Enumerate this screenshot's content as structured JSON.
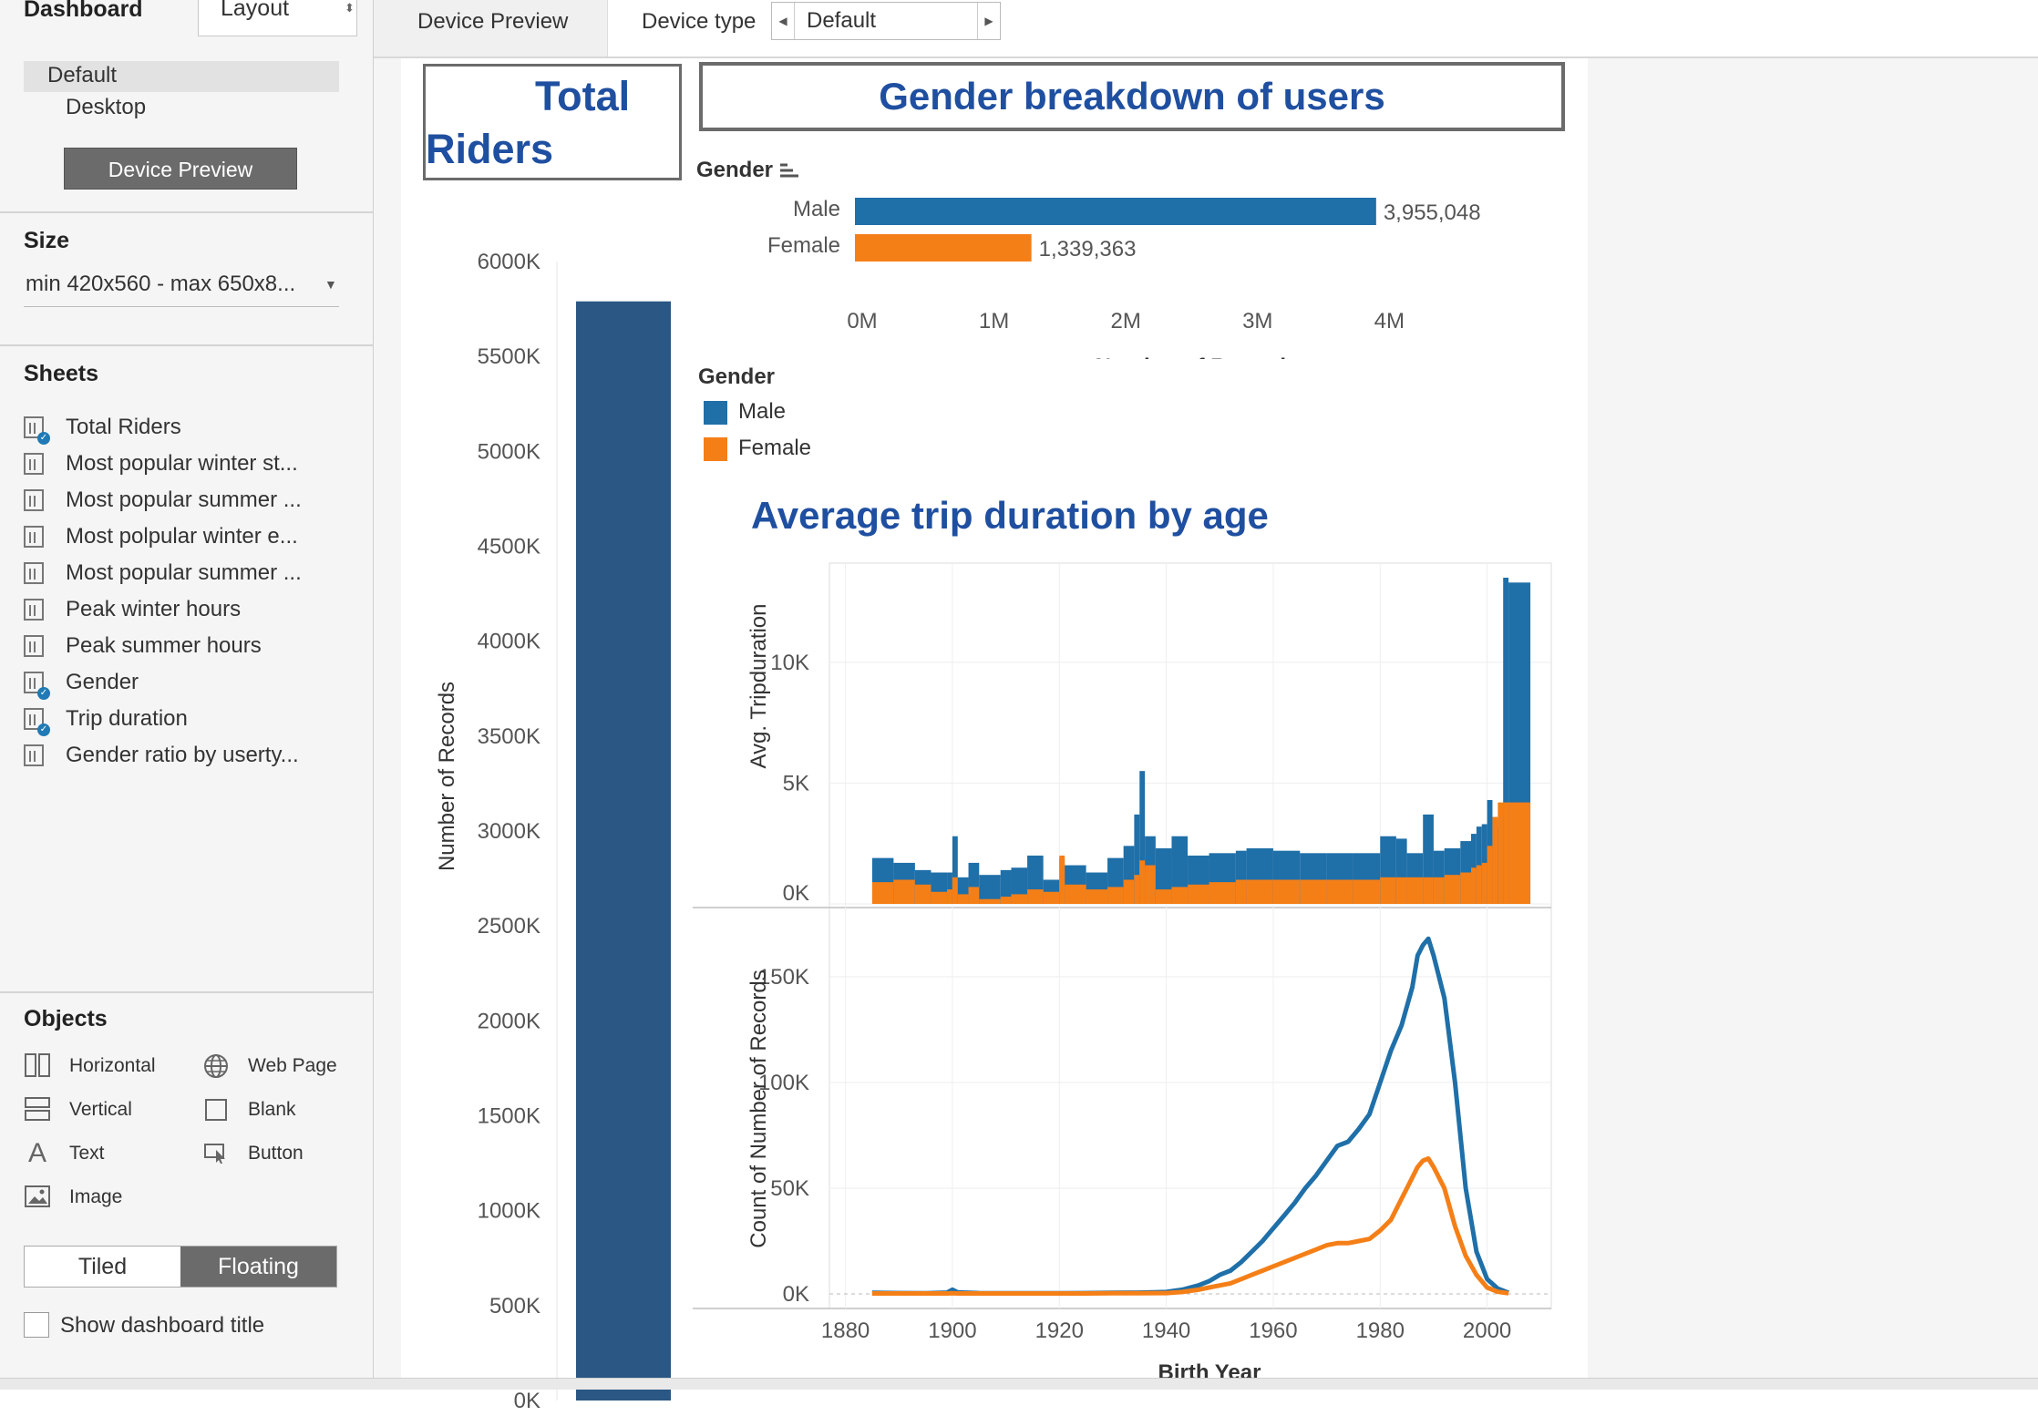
{
  "left_panel": {
    "tabs": {
      "dashboard": "Dashboard",
      "layout": "Layout"
    },
    "device": {
      "default": "Default",
      "desktop": "Desktop",
      "preview_button": "Device Preview"
    },
    "size": {
      "header": "Size",
      "value": "min 420x560 - max 650x8..."
    },
    "sheets": {
      "header": "Sheets",
      "items": [
        {
          "label": "Total Riders",
          "used": true
        },
        {
          "label": "Most popular winter st...",
          "used": false
        },
        {
          "label": "Most popular summer ...",
          "used": false
        },
        {
          "label": "Most polpular winter e...",
          "used": false
        },
        {
          "label": "Most popular summer ...",
          "used": false
        },
        {
          "label": "Peak winter hours",
          "used": false
        },
        {
          "label": "Peak summer hours",
          "used": false
        },
        {
          "label": "Gender",
          "used": true
        },
        {
          "label": "Trip duration",
          "used": true
        },
        {
          "label": "Gender ratio by userty...",
          "used": false
        }
      ]
    },
    "objects": {
      "header": "Objects",
      "items": [
        {
          "label": "Horizontal",
          "icon": "horizontal-container-icon"
        },
        {
          "label": "Web Page",
          "icon": "globe-icon"
        },
        {
          "label": "Vertical",
          "icon": "vertical-container-icon"
        },
        {
          "label": "Blank",
          "icon": "blank-square-icon"
        },
        {
          "label": "Text",
          "icon": "text-icon"
        },
        {
          "label": "Button",
          "icon": "button-cursor-icon"
        },
        {
          "label": "Image",
          "icon": "image-icon"
        }
      ],
      "tiled": "Tiled",
      "floating": "Floating",
      "show_title": "Show dashboard title"
    }
  },
  "topbar": {
    "device_preview": "Device Preview",
    "device_type_label": "Device type",
    "device_type_value": "Default"
  },
  "dashboard": {
    "total_riders_title": "Total Riders",
    "gender_title": "Gender breakdown of users",
    "trip_title": "Average trip duration by age",
    "legend": {
      "title": "Gender",
      "items": [
        {
          "label": "Male",
          "color": "#1f6fa8"
        },
        {
          "label": "Female",
          "color": "#f57f17"
        }
      ]
    }
  },
  "colors": {
    "male": "#1f6fa8",
    "female": "#f57f17",
    "total_bar": "#2a5783",
    "title_blue": "#1f4fa0"
  },
  "chart_data": [
    {
      "id": "total-riders",
      "type": "bar",
      "categories": [
        ""
      ],
      "values": [
        5790000
      ],
      "ylabel": "Number of Records",
      "ylim": [
        0,
        6000000
      ],
      "yticks": [
        "0K",
        "500K",
        "1000K",
        "1500K",
        "2000K",
        "2500K",
        "3000K",
        "3500K",
        "4000K",
        "4500K",
        "5000K",
        "5500K",
        "6000K"
      ]
    },
    {
      "id": "gender-breakdown",
      "type": "bar",
      "orientation": "horizontal",
      "header": "Gender",
      "categories": [
        "Male",
        "Female"
      ],
      "values": [
        3955048,
        1339363
      ],
      "value_labels": [
        "3,955,048",
        "1,339,363"
      ],
      "xlabel": "Number of Records",
      "xlim": [
        0,
        4800000
      ],
      "xticks": [
        "0M",
        "1M",
        "2M",
        "3M",
        "4M"
      ]
    },
    {
      "id": "avg-trip-duration",
      "type": "area",
      "ylabel": "Avg. Tripduration",
      "ylim": [
        0,
        13500
      ],
      "yticks": [
        "0K",
        "5K",
        "10K"
      ],
      "x": [
        1885,
        1889,
        1893,
        1896,
        1899,
        1900,
        1901,
        1903,
        1905,
        1909,
        1911,
        1914,
        1917,
        1920,
        1921,
        1925,
        1929,
        1932,
        1934,
        1935,
        1936,
        1938,
        1941,
        1944,
        1948,
        1953,
        1955,
        1960,
        1965,
        1970,
        1975,
        1980,
        1983,
        1985,
        1988,
        1990,
        1992,
        1995,
        1997,
        1998,
        1999,
        2000,
        2001,
        2002,
        2003,
        2004
      ],
      "series": [
        {
          "name": "Male",
          "values": [
            1600,
            1200,
            1100,
            800,
            900,
            1700,
            900,
            1300,
            700,
            900,
            1000,
            1400,
            500,
            1500,
            700,
            800,
            1200,
            2300,
            2500,
            3700,
            1200,
            1800,
            2500,
            1600,
            1700,
            1900,
            2000,
            1900,
            1800,
            1800,
            1800,
            2300,
            2200,
            1800,
            3000,
            1700,
            1800,
            1500,
            2100,
            2400,
            2500,
            3300,
            2600,
            2900,
            9600,
            9200
          ],
          "totals": [
            1900,
            1700,
            1400,
            1300,
            1300,
            2800,
            1100,
            1700,
            1200,
            1400,
            1500,
            2000,
            1000,
            1900,
            1600,
            1300,
            1900,
            2400,
            3700,
            5500,
            2800,
            2300,
            2800,
            2000,
            2100,
            2200,
            2300,
            2200,
            2100,
            2100,
            2100,
            2800,
            2700,
            2100,
            3700,
            2200,
            2300,
            2600,
            2900,
            3200,
            3300,
            4300,
            3200,
            3500,
            13500,
            13300
          ]
        },
        {
          "name": "Female",
          "values": [
            900,
            1000,
            800,
            500,
            600,
            1100,
            400,
            700,
            200,
            300,
            400,
            600,
            500,
            2000,
            800,
            600,
            700,
            1000,
            1200,
            1800,
            1600,
            600,
            700,
            800,
            900,
            1000,
            1000,
            1000,
            1000,
            1000,
            1000,
            1100,
            1100,
            1100,
            1100,
            1100,
            1200,
            1300,
            1500,
            1600,
            1700,
            2400,
            3600,
            4200,
            4200,
            4200
          ]
        }
      ]
    },
    {
      "id": "count-by-birth-year",
      "type": "line",
      "xlabel": "Birth Year",
      "ylabel": "Count of Number of Records",
      "xlim": [
        1877,
        2012
      ],
      "ylim": [
        0,
        175000
      ],
      "xticks": [
        1880,
        1900,
        1920,
        1940,
        1960,
        1980,
        2000
      ],
      "yticks": [
        "0K",
        "50K",
        "100K",
        "150K"
      ],
      "x": [
        1885,
        1890,
        1895,
        1899,
        1900,
        1901,
        1905,
        1910,
        1915,
        1920,
        1925,
        1930,
        1935,
        1940,
        1943,
        1946,
        1948,
        1950,
        1952,
        1954,
        1956,
        1958,
        1960,
        1962,
        1964,
        1966,
        1968,
        1970,
        1972,
        1974,
        1976,
        1978,
        1980,
        1982,
        1984,
        1986,
        1987,
        1988,
        1989,
        1990,
        1992,
        1994,
        1996,
        1998,
        2000,
        2002,
        2004
      ],
      "series": [
        {
          "name": "Male",
          "values": [
            500,
            400,
            300,
            600,
            2000,
            700,
            400,
            300,
            300,
            300,
            400,
            500,
            600,
            900,
            2000,
            4000,
            6000,
            9000,
            11000,
            15000,
            20000,
            25000,
            31000,
            37000,
            43000,
            50000,
            56000,
            63000,
            70000,
            72000,
            78000,
            85000,
            100000,
            115000,
            127000,
            145000,
            160000,
            165000,
            168000,
            160000,
            140000,
            100000,
            50000,
            20000,
            7000,
            2500,
            500
          ]
        },
        {
          "name": "Female",
          "values": [
            200,
            200,
            200,
            200,
            300,
            200,
            200,
            200,
            200,
            200,
            200,
            300,
            300,
            400,
            900,
            2000,
            3000,
            4000,
            5000,
            7000,
            9000,
            11000,
            13000,
            15000,
            17000,
            19000,
            21000,
            23000,
            24000,
            24000,
            25000,
            26000,
            30000,
            35000,
            45000,
            55000,
            60000,
            63000,
            64000,
            60000,
            50000,
            32000,
            18000,
            9000,
            3000,
            1000,
            300
          ]
        }
      ]
    }
  ]
}
